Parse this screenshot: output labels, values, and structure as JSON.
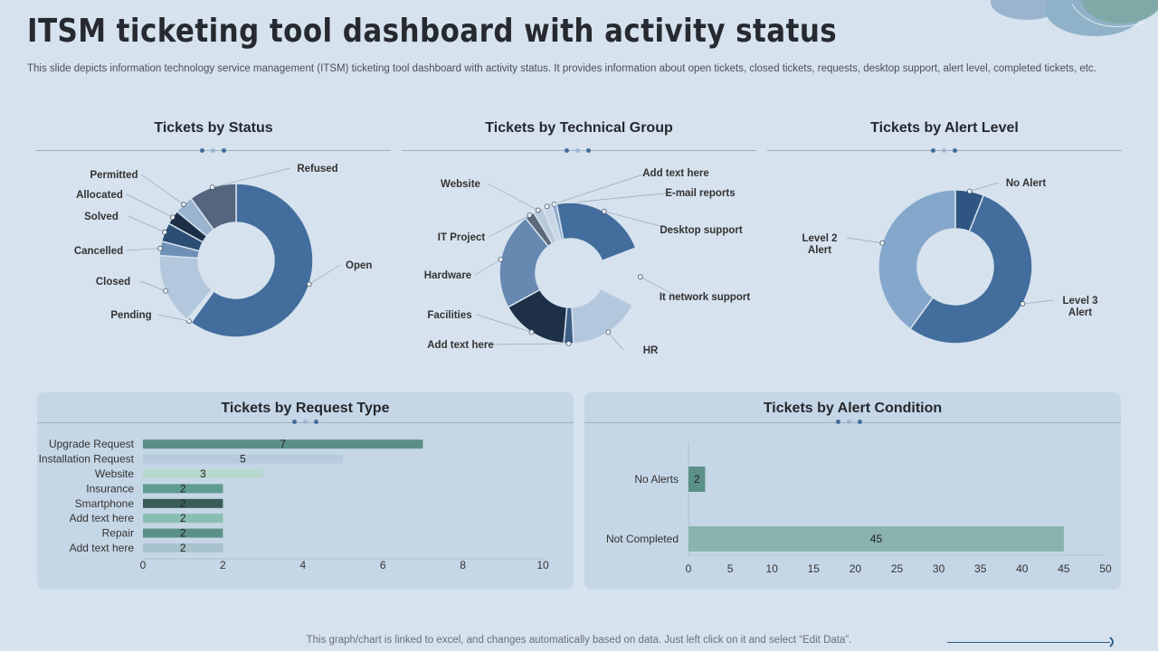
{
  "header": {
    "title": "ITSM ticketing tool dashboard with activity status",
    "subtitle": "This slide depicts information technology service management (ITSM) ticketing tool dashboard with activity status. It provides information about open tickets, closed tickets, requests, desktop support, alert level, completed tickets, etc."
  },
  "footer": {
    "note": "This graph/chart is linked to excel, and changes automatically based on data. Just left click on it and select “Edit Data”."
  },
  "colors": {
    "background": "#d6e2ee",
    "primary": "#426d9d",
    "bar_green": "#5b9088",
    "panel": "#c5d6e6"
  },
  "chart_data": [
    {
      "type": "pie",
      "title": "Tickets by Status",
      "labels": [
        "Open",
        "Pending",
        "Closed",
        "Cancelled",
        "Solved",
        "Allocated",
        "Permitted",
        "Refused"
      ],
      "values": [
        60,
        1,
        15,
        3,
        4,
        3,
        4,
        10
      ],
      "colors": [
        "#426d9d",
        "#d8e3ef",
        "#b4c8dd",
        "#6e8fb6",
        "#2c4e74",
        "#1d2f47",
        "#9ab3cf",
        "#54657d"
      ]
    },
    {
      "type": "pie",
      "title": "Tickets by Technical Group",
      "labels": [
        "Add text here",
        "E-mail reports",
        "Desktop support",
        "It network support",
        "HR",
        "Add text here",
        "Facilities",
        "Hardware",
        "IT Project",
        "Website"
      ],
      "values": [
        2,
        1,
        20,
        12,
        15,
        2,
        14,
        20,
        2,
        2
      ],
      "colors": [
        "#c9d6e4",
        "#93aed0",
        "#426d9d",
        "#d6e2ee",
        "#b4c8dd",
        "#3d5f86",
        "#1e3048",
        "#6688b1",
        "#5c6a7c",
        "#b8c9dc"
      ]
    },
    {
      "type": "pie",
      "title": "Tickets by Alert Level",
      "labels": [
        "No Alert",
        "Level 3 Alert",
        "Level 2 Alert"
      ],
      "values": [
        6,
        54,
        40
      ],
      "colors": [
        "#2f5682",
        "#426d9d",
        "#86a7cc"
      ]
    },
    {
      "type": "bar",
      "orientation": "horizontal",
      "title": "Tickets by Request Type",
      "categories": [
        "Upgrade Request",
        "Installation Request",
        "Website",
        "Insurance",
        "Smartphone",
        "Add text here",
        "Repair",
        "Add text here"
      ],
      "values": [
        7,
        5,
        3,
        2,
        2,
        2,
        2,
        2
      ],
      "colors": [
        "#5b9088",
        "#b7cbdc",
        "#b7d7cf",
        "#5e9c91",
        "#395c57",
        "#8abeb2",
        "#5b9088",
        "#a8c3cc"
      ],
      "xlim": [
        0,
        10
      ],
      "xticks": [
        0,
        2,
        4,
        6,
        8,
        10
      ]
    },
    {
      "type": "bar",
      "orientation": "horizontal",
      "title": "Tickets by Alert Condition",
      "categories": [
        "No Alerts",
        "Not Completed"
      ],
      "values": [
        2,
        45
      ],
      "colors": [
        "#5b9088",
        "#8ab3b0"
      ],
      "xlim": [
        0,
        50
      ],
      "xticks": [
        0,
        5,
        10,
        15,
        20,
        25,
        30,
        35,
        40,
        45,
        50
      ]
    }
  ]
}
